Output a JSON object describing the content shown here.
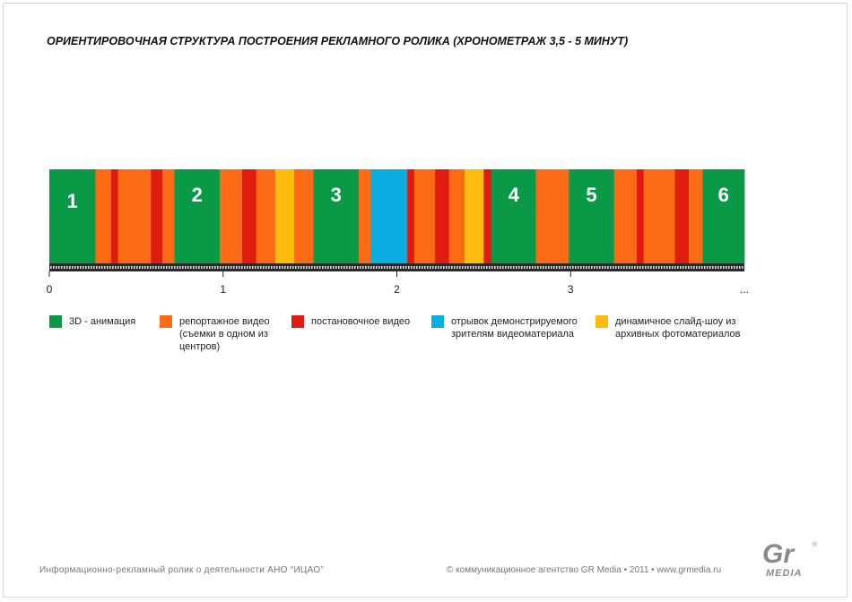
{
  "chart_data": {
    "type": "bar",
    "title": "ОРИЕНТИРОВОЧНАЯ  СТРУКТУРА  ПОСТРОЕНИЯ  РЕКЛАМНОГО  РОЛИКА  (ХРОНОМЕТРАЖ  3,5 - 5  МИНУТ)",
    "xlabel": "",
    "ylabel": "",
    "xlim": [
      0,
      4
    ],
    "ticks": [
      "0",
      "1",
      "2",
      "3",
      "..."
    ],
    "colors": {
      "animation": "#0a9a47",
      "report": "#fb6a14",
      "staged": "#e01b10",
      "excerpt": "#0aaee3",
      "slideshow": "#fdbb0d"
    },
    "legend": [
      {
        "key": "animation",
        "label": "3D - анимация"
      },
      {
        "key": "report",
        "label": "репортажное  видео (съемки  в  одном из  центров)"
      },
      {
        "key": "staged",
        "label": "постановочное  видео"
      },
      {
        "key": "excerpt",
        "label": "отрывок  демонстрируемого зрителям  видеоматериала"
      },
      {
        "key": "slideshow",
        "label": "динамичное  слайд-шоу  из архивных  фотоматериалов"
      }
    ],
    "segments": [
      {
        "start": 0.0,
        "end": 0.265,
        "type": "animation",
        "label": "1"
      },
      {
        "start": 0.265,
        "end": 0.355,
        "type": "report"
      },
      {
        "start": 0.355,
        "end": 0.395,
        "type": "staged"
      },
      {
        "start": 0.395,
        "end": 0.45,
        "type": "report"
      },
      {
        "start": 0.45,
        "end": 0.585,
        "type": "report"
      },
      {
        "start": 0.585,
        "end": 0.65,
        "type": "staged"
      },
      {
        "start": 0.65,
        "end": 0.72,
        "type": "report"
      },
      {
        "start": 0.72,
        "end": 0.98,
        "type": "animation",
        "label": "2"
      },
      {
        "start": 0.98,
        "end": 1.11,
        "type": "report"
      },
      {
        "start": 1.11,
        "end": 1.19,
        "type": "staged"
      },
      {
        "start": 1.19,
        "end": 1.3,
        "type": "report"
      },
      {
        "start": 1.3,
        "end": 1.41,
        "type": "slideshow"
      },
      {
        "start": 1.41,
        "end": 1.52,
        "type": "report"
      },
      {
        "start": 1.52,
        "end": 1.78,
        "type": "animation",
        "label": "3"
      },
      {
        "start": 1.78,
        "end": 1.85,
        "type": "report"
      },
      {
        "start": 1.85,
        "end": 2.06,
        "type": "excerpt"
      },
      {
        "start": 2.06,
        "end": 2.1,
        "type": "staged"
      },
      {
        "start": 2.1,
        "end": 2.22,
        "type": "report"
      },
      {
        "start": 2.22,
        "end": 2.3,
        "type": "staged"
      },
      {
        "start": 2.3,
        "end": 2.39,
        "type": "report"
      },
      {
        "start": 2.39,
        "end": 2.5,
        "type": "slideshow"
      },
      {
        "start": 2.5,
        "end": 2.545,
        "type": "staged"
      },
      {
        "start": 2.545,
        "end": 2.8,
        "type": "animation",
        "label": "4"
      },
      {
        "start": 2.8,
        "end": 2.99,
        "type": "report"
      },
      {
        "start": 2.99,
        "end": 3.25,
        "type": "animation",
        "label": "5"
      },
      {
        "start": 3.25,
        "end": 3.38,
        "type": "report"
      },
      {
        "start": 3.38,
        "end": 3.42,
        "type": "staged"
      },
      {
        "start": 3.42,
        "end": 3.6,
        "type": "report"
      },
      {
        "start": 3.6,
        "end": 3.68,
        "type": "staged"
      },
      {
        "start": 3.68,
        "end": 3.76,
        "type": "report"
      },
      {
        "start": 3.76,
        "end": 4.0,
        "type": "animation",
        "label": "6"
      }
    ]
  },
  "footer": {
    "left": "Информационно-рекламный  ролик  о  деятельности  АНО  “ИЦАО”",
    "right": "©  коммуникационное  агентство GR Media  •  2011 •  www.grmedia.ru"
  },
  "logo": {
    "top_text": "Gr",
    "bottom_text": "MEDIA",
    "color": "#8a8a8a"
  }
}
